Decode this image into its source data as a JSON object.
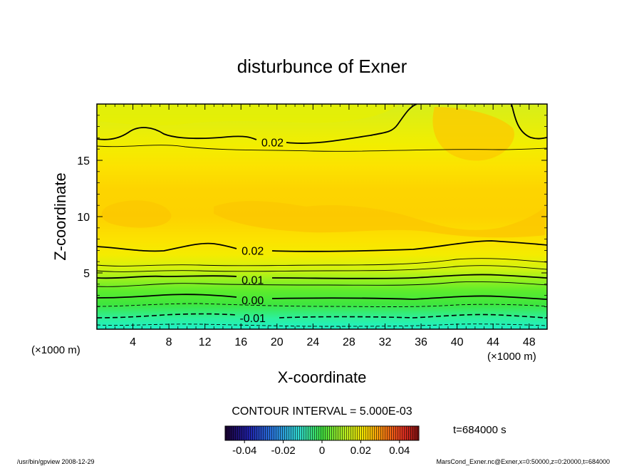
{
  "chart_data": {
    "type": "contour",
    "title": "disturbunce of Exner",
    "xlabel": "X-coordinate",
    "ylabel": "Z-coordinate",
    "x_unit_left": "(×1000 m)",
    "x_unit_right": "(×1000 m)",
    "xlim": [
      0,
      50
    ],
    "ylim": [
      0,
      20
    ],
    "x_ticks": [
      "4",
      "8",
      "12",
      "16",
      "20",
      "24",
      "28",
      "32",
      "36",
      "40",
      "44",
      "48"
    ],
    "y_ticks": [
      "5",
      "10",
      "15"
    ],
    "contour_labels": [
      {
        "text": "0.02",
        "x": 19.5,
        "z": 16.6
      },
      {
        "text": "0.02",
        "x": 17.3,
        "z": 7.0
      },
      {
        "text": "0.01",
        "x": 17.3,
        "z": 4.4
      },
      {
        "text": "0.00",
        "x": 17.3,
        "z": 2.6
      },
      {
        "text": "-0.01",
        "x": 17.3,
        "z": 1.0
      }
    ],
    "contour_interval": "CONTOUR INTERVAL = 5.000E-03",
    "colorbar": {
      "range": [
        -0.05,
        0.05
      ],
      "ticks": [
        "-0.04",
        "-0.02",
        "0",
        "0.02",
        "0.04"
      ],
      "tick_values": [
        -0.04,
        -0.02,
        0,
        0.02,
        0.04
      ]
    },
    "time_label": "t=684000 s",
    "footer_left": "/usr/bin/gpview   2008-12-29",
    "footer_right": "MarsCond_Exner.nc@Exner,x=0:50000,z=0:20000,t=684000"
  }
}
